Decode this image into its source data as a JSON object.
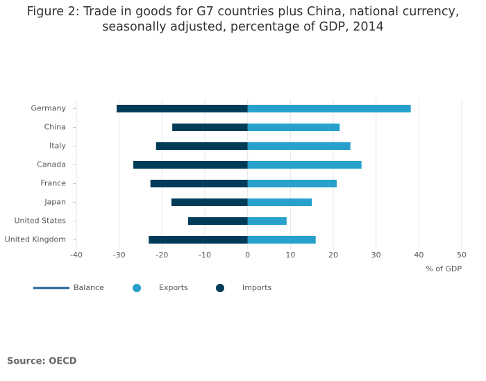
{
  "chart_data": {
    "type": "bar",
    "orientation": "horizontal",
    "title": "Figure 2: Trade in goods for G7 countries plus China, national currency, seasonally adjusted, percentage of GDP, 2014",
    "categories": [
      "Germany",
      "China",
      "Italy",
      "Canada",
      "France",
      "Japan",
      "United States",
      "United Kingdom"
    ],
    "series": [
      {
        "name": "Balance",
        "type": "line",
        "color": "#206095",
        "values": [
          null,
          null,
          null,
          null,
          null,
          null,
          null,
          null
        ]
      },
      {
        "name": "Exports",
        "color": "#27a0cc",
        "values": [
          38.1,
          21.5,
          24.0,
          26.6,
          20.8,
          15.0,
          9.1,
          15.9
        ]
      },
      {
        "name": "Imports",
        "color": "#003c57",
        "values": [
          -30.6,
          -17.6,
          -21.4,
          -26.7,
          -22.7,
          -17.8,
          -13.9,
          -23.1
        ]
      }
    ],
    "xlim": [
      -40,
      50
    ],
    "xticks": [
      -40,
      -30,
      -20,
      -10,
      0,
      10,
      20,
      30,
      40,
      50
    ],
    "xlabel": "% of GDP",
    "grid": true,
    "source": "Source: OECD"
  }
}
